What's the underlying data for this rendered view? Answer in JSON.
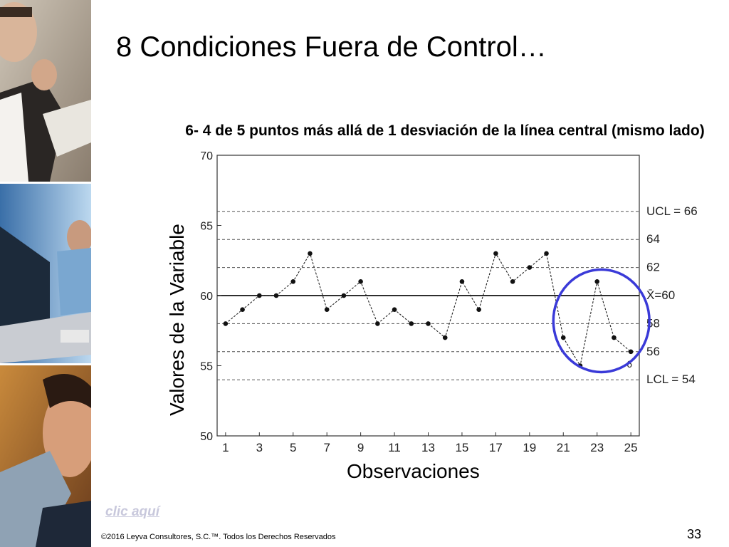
{
  "slide": {
    "title": "8 Condiciones Fuera de Control…",
    "link_label": "clic aquí",
    "copyright": "©2016 Leyva Consultores, S.C.™. Todos los Derechos Reservados",
    "page_number": "33"
  },
  "chart_data": {
    "type": "line",
    "title": "6- 4 de 5 puntos más allá de 1 desviación de la línea central (mismo lado)",
    "xlabel": "Observaciones",
    "ylabel": "Valores de la Variable",
    "x": [
      1,
      2,
      3,
      4,
      5,
      6,
      7,
      8,
      9,
      10,
      11,
      12,
      13,
      14,
      15,
      16,
      17,
      18,
      19,
      20,
      21,
      22,
      23,
      24,
      25
    ],
    "values": [
      58,
      59,
      60,
      60,
      61,
      63,
      59,
      60,
      61,
      58,
      59,
      58,
      58,
      57,
      61,
      59,
      63,
      61,
      62,
      63,
      57,
      55,
      61,
      57,
      56
    ],
    "xlim": [
      0.5,
      25.5
    ],
    "ylim": [
      50,
      70
    ],
    "y_ticks": [
      50,
      55,
      60,
      65,
      70
    ],
    "x_ticks": [
      1,
      3,
      5,
      7,
      9,
      11,
      13,
      15,
      17,
      19,
      21,
      23,
      25
    ],
    "reference_lines": [
      {
        "value": 66,
        "label": "UCL = 66",
        "style": "dashed"
      },
      {
        "value": 64,
        "label": "64",
        "style": "dashed"
      },
      {
        "value": 62,
        "label": "62",
        "style": "dashed"
      },
      {
        "value": 60,
        "label": "X̄=60",
        "style": "solid"
      },
      {
        "value": 58,
        "label": "58",
        "style": "dashed"
      },
      {
        "value": 56,
        "label": "56",
        "style": "dashed"
      },
      {
        "value": 54,
        "label": "LCL = 54",
        "style": "dashed"
      }
    ],
    "point_annotation": {
      "x": 25,
      "label": "6"
    },
    "highlight": {
      "x_from": 21,
      "x_to": 25,
      "color": "#3a3ad8"
    },
    "colors": {
      "line": "#222222",
      "marker": "#111111",
      "highlight": "#3a3ad8"
    }
  }
}
